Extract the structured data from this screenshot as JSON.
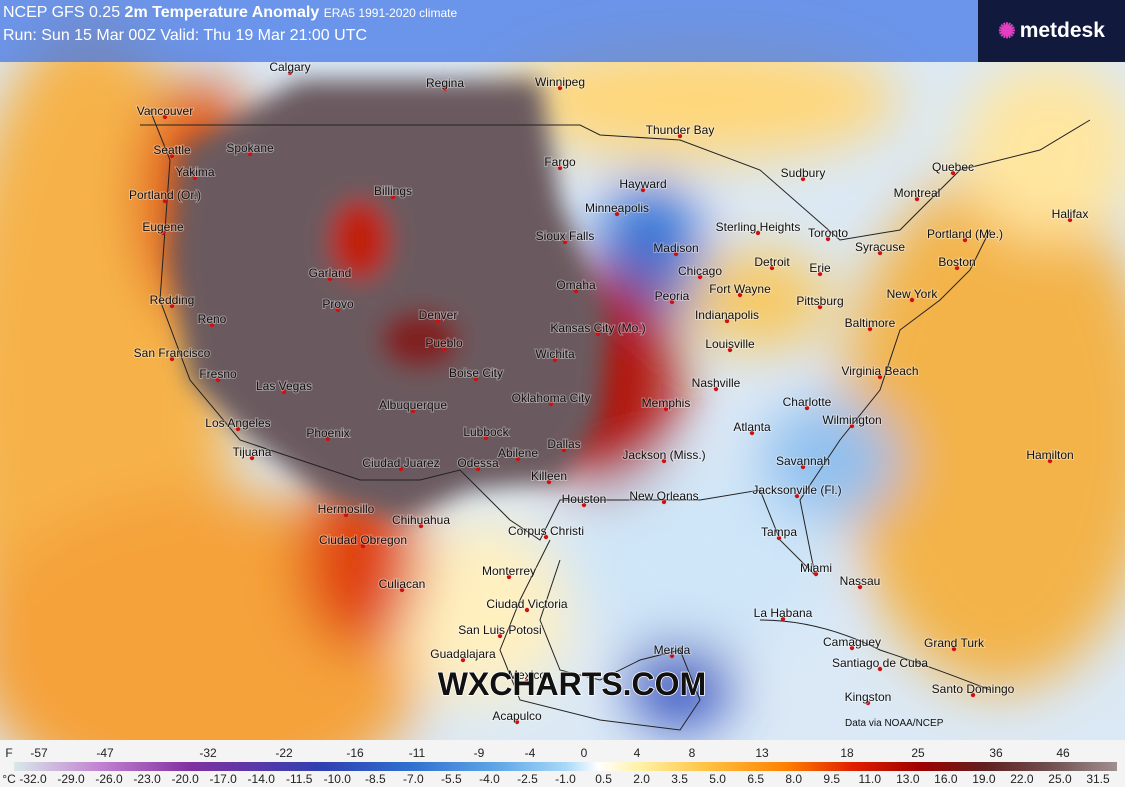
{
  "header": {
    "model": "NCEP GFS 0.25",
    "title": "2m Temperature Anomaly",
    "climate": "ERA5 1991-2020 climate",
    "run": "Run: Sun 15 Mar 00Z Valid: Thu 19 Mar 21:00 UTC"
  },
  "logo": "metdesk",
  "watermark": "WXCHARTS.COM",
  "credit": "Data via NOAA/NCEP",
  "cities": [
    "Calgary",
    "Regina",
    "Winnipeg",
    "Vancouver",
    "Seattle",
    "Spokane",
    "Yakima",
    "Portland (Or.)",
    "Billings",
    "Thunder Bay",
    "Fargo",
    "Hayward",
    "Sudbury",
    "Quebec",
    "Montreal",
    "Minneapolis",
    "Eugene",
    "Sterling Heights",
    "Toronto",
    "Halifax",
    "Sioux Falls",
    "Madison",
    "Syracuse",
    "Portland (Me.)",
    "Garland",
    "Chicago",
    "Detroit",
    "Erie",
    "Boston",
    "Redding",
    "Omaha",
    "Peoria",
    "Fort Wayne",
    "Pittsburg",
    "New York",
    "Provo",
    "Reno",
    "Denver",
    "Kansas City (Mo.)",
    "Indianapolis",
    "Baltimore",
    "San Francisco",
    "Pueblo",
    "Louisville",
    "Wichita",
    "Fresno",
    "Las Vegas",
    "Boise City",
    "Nashville",
    "Virginia Beach",
    "Oklahoma City",
    "Charlotte",
    "Memphis",
    "Albuquerque",
    "Los Angeles",
    "Wilmington",
    "Lubbock",
    "Atlanta",
    "Phoenix",
    "Dallas",
    "Abilene",
    "Jackson (Miss.)",
    "Tijuana",
    "Hamilton",
    "Savannah",
    "Ciudad Juarez",
    "Odessa",
    "Killeen",
    "Jacksonville (Fl.)",
    "Houston",
    "New Orleans",
    "Chihuahua",
    "Hermosillo",
    "Ciudad Obregon",
    "Corpus Christi",
    "Tampa",
    "Miami",
    "Monterrey",
    "Nassau",
    "Culiacan",
    "Ciudad Victoria",
    "La Habana",
    "San Luis Potosi",
    "Camaguey",
    "Grand Turk",
    "Guadalajara",
    "Merida",
    "Santiago de Cuba",
    "Mexico",
    "Kingston",
    "Santo Domingo",
    "Acapulco"
  ],
  "legend": {
    "f_unit": "F",
    "f_labels": [
      "-57",
      "-47",
      "-32",
      "-22",
      "-16",
      "-11",
      "-9",
      "-4",
      "0",
      "4",
      "8",
      "13",
      "18",
      "25",
      "36",
      "46"
    ],
    "c_unit": "°C",
    "c_labels": [
      "-32.0",
      "-29.0",
      "-26.0",
      "-23.0",
      "-20.0",
      "-17.0",
      "-14.0",
      "-11.5",
      "-10.0",
      "-8.5",
      "-7.0",
      "-5.5",
      "-4.0",
      "-2.5",
      "-1.0",
      "0.5",
      "2.0",
      "3.5",
      "5.0",
      "6.5",
      "8.0",
      "9.5",
      "11.0",
      "13.0",
      "16.0",
      "19.0",
      "22.0",
      "25.0",
      "31.5"
    ]
  }
}
